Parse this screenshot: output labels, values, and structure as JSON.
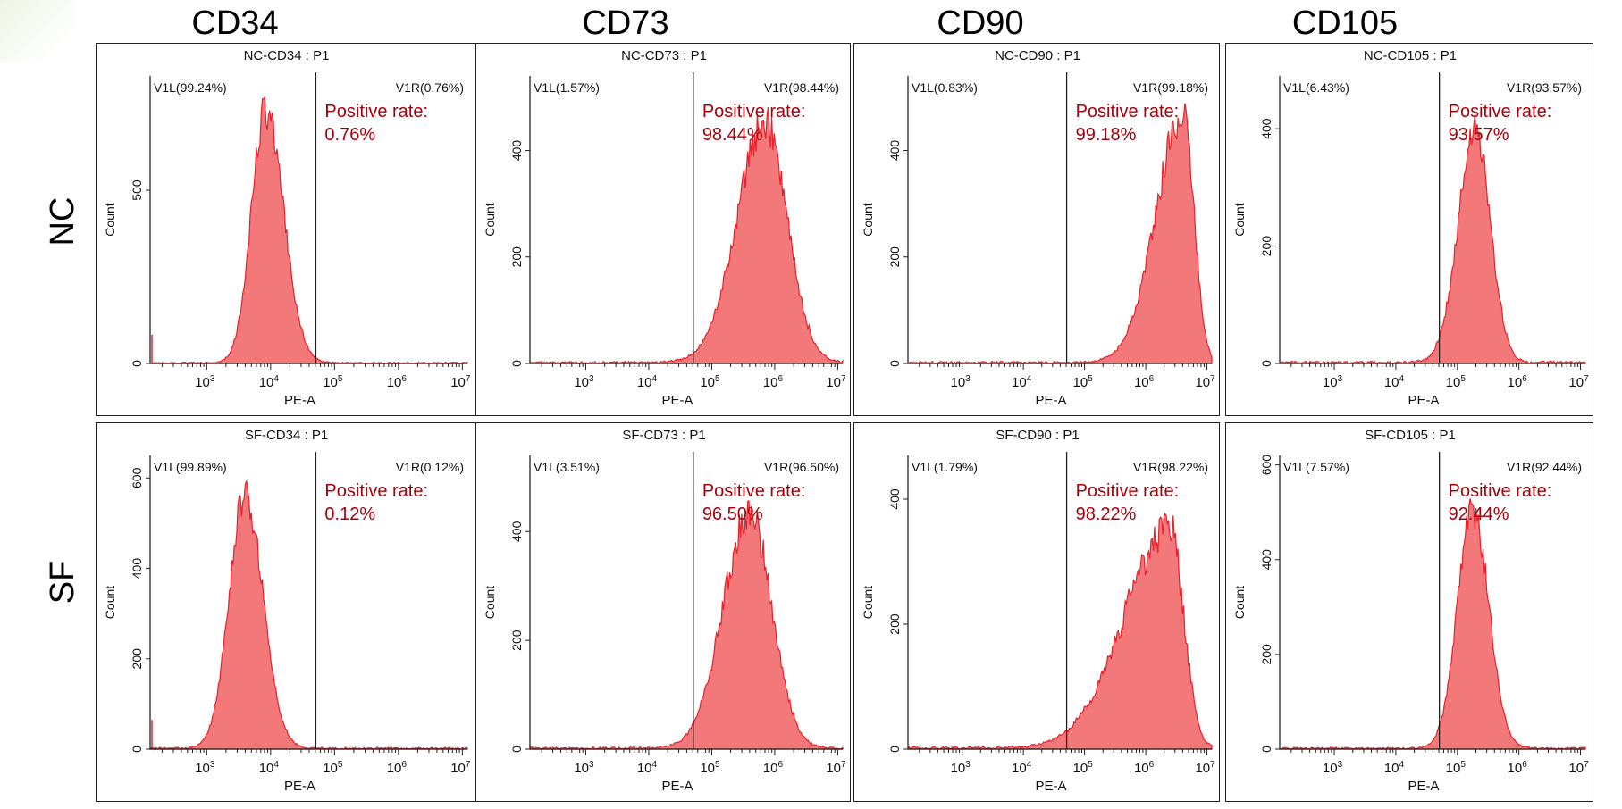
{
  "figure": {
    "column_titles": [
      "CD34",
      "CD73",
      "CD90",
      "CD105"
    ],
    "row_labels": [
      "NC",
      "SF"
    ]
  },
  "colors": {
    "fill": "#f2787a",
    "stroke": "#e8212a",
    "annotation": "#a8000a",
    "axis": "#222222"
  },
  "chart_data": [
    {
      "type": "histogram",
      "row": "NC",
      "col": "CD34",
      "title": "NC-CD34 : P1",
      "xlabel": "PE-A",
      "ylabel": "Count",
      "xscale": "log",
      "xlim": [
        130,
        12000000
      ],
      "ylim": [
        0,
        830
      ],
      "yticks": [
        0,
        500
      ],
      "xticks": [
        "10^3",
        "10^4",
        "10^5",
        "10^6",
        "10^7"
      ],
      "gate_x": 51000,
      "left_gate": "V1L(99.24%)",
      "right_gate": "V1R(0.76%)",
      "annotation_label": "Positive rate:",
      "annotation_value": "0.76%",
      "peak_log10": 3.92,
      "peak_count": 730,
      "sigma_left": 0.22,
      "sigma_right": 0.28,
      "noise": 0.08,
      "spike": true
    },
    {
      "type": "histogram",
      "row": "NC",
      "col": "CD73",
      "title": "NC-CD73 : P1",
      "xlabel": "PE-A",
      "ylabel": "Count",
      "xscale": "log",
      "xlim": [
        130,
        12000000
      ],
      "ylim": [
        0,
        540
      ],
      "yticks": [
        0,
        200,
        400
      ],
      "xticks": [
        "10^3",
        "10^4",
        "10^5",
        "10^6",
        "10^7"
      ],
      "gate_x": 51000,
      "left_gate": "V1L(1.57%)",
      "right_gate": "V1R(98.44%)",
      "annotation_label": "Positive rate:",
      "annotation_value": "98.44%",
      "peak_log10": 5.85,
      "peak_count": 450,
      "sigma_left": 0.45,
      "sigma_right": 0.35,
      "noise": 0.08,
      "spike": false
    },
    {
      "type": "histogram",
      "row": "NC",
      "col": "CD90",
      "title": "NC-CD90 : P1",
      "xlabel": "PE-A",
      "ylabel": "Count",
      "xscale": "log",
      "xlim": [
        130,
        12000000
      ],
      "ylim": [
        0,
        540
      ],
      "yticks": [
        0,
        200,
        400
      ],
      "xticks": [
        "10^3",
        "10^4",
        "10^5",
        "10^6",
        "10^7"
      ],
      "gate_x": 51000,
      "left_gate": "V1L(0.83%)",
      "right_gate": "V1R(99.18%)",
      "annotation_label": "Positive rate:",
      "annotation_value": "99.18%",
      "peak_log10": 6.62,
      "peak_count": 470,
      "sigma_left": 0.45,
      "sigma_right": 0.17,
      "noise": 0.08,
      "spike": false
    },
    {
      "type": "histogram",
      "row": "NC",
      "col": "CD105",
      "title": "NC-CD105 : P1",
      "xlabel": "PE-A",
      "ylabel": "Count",
      "xscale": "log",
      "xlim": [
        130,
        12000000
      ],
      "ylim": [
        0,
        490
      ],
      "yticks": [
        0,
        200,
        400
      ],
      "xticks": [
        "10^3",
        "10^4",
        "10^5",
        "10^6",
        "10^7"
      ],
      "gate_x": 51000,
      "left_gate": "V1L(6.43%)",
      "right_gate": "V1R(93.57%)",
      "annotation_label": "Positive rate:",
      "annotation_value": "93.57%",
      "peak_log10": 5.3,
      "peak_count": 400,
      "sigma_left": 0.28,
      "sigma_right": 0.24,
      "noise": 0.08,
      "spike": false
    },
    {
      "type": "histogram",
      "row": "SF",
      "col": "CD34",
      "title": "SF-CD34 : P1",
      "xlabel": "PE-A",
      "ylabel": "Count",
      "xscale": "log",
      "xlim": [
        130,
        12000000
      ],
      "ylim": [
        0,
        650
      ],
      "yticks": [
        0,
        200,
        400,
        600
      ],
      "xticks": [
        "10^3",
        "10^4",
        "10^5",
        "10^6",
        "10^7"
      ],
      "gate_x": 51000,
      "left_gate": "V1L(99.89%)",
      "right_gate": "V1R(0.12%)",
      "annotation_label": "Positive rate:",
      "annotation_value": "0.12%",
      "peak_log10": 3.6,
      "peak_count": 560,
      "sigma_left": 0.25,
      "sigma_right": 0.28,
      "noise": 0.07,
      "spike": true
    },
    {
      "type": "histogram",
      "row": "SF",
      "col": "CD73",
      "title": "SF-CD73 : P1",
      "xlabel": "PE-A",
      "ylabel": "Count",
      "xscale": "log",
      "xlim": [
        130,
        12000000
      ],
      "ylim": [
        0,
        540
      ],
      "yticks": [
        0,
        200,
        400
      ],
      "xticks": [
        "10^3",
        "10^4",
        "10^5",
        "10^6",
        "10^7"
      ],
      "gate_x": 51000,
      "left_gate": "V1L(3.51%)",
      "right_gate": "V1R(96.50%)",
      "annotation_label": "Positive rate:",
      "annotation_value": "96.50%",
      "peak_log10": 5.6,
      "peak_count": 430,
      "sigma_left": 0.42,
      "sigma_right": 0.35,
      "noise": 0.08,
      "spike": false
    },
    {
      "type": "histogram",
      "row": "SF",
      "col": "CD90",
      "title": "SF-CD90 : P1",
      "xlabel": "PE-A",
      "ylabel": "Count",
      "xscale": "log",
      "xlim": [
        130,
        12000000
      ],
      "ylim": [
        0,
        470
      ],
      "yticks": [
        0,
        200,
        400
      ],
      "xticks": [
        "10^3",
        "10^4",
        "10^5",
        "10^6",
        "10^7"
      ],
      "gate_x": 51000,
      "left_gate": "V1L(1.79%)",
      "right_gate": "V1R(98.22%)",
      "annotation_label": "Positive rate:",
      "annotation_value": "98.22%",
      "peak_log10": 6.4,
      "peak_count": 350,
      "sigma_left": 0.75,
      "sigma_right": 0.22,
      "noise": 0.09,
      "spike": false
    },
    {
      "type": "histogram",
      "row": "SF",
      "col": "CD105",
      "title": "SF-CD105 : P1",
      "xlabel": "PE-A",
      "ylabel": "Count",
      "xscale": "log",
      "xlim": [
        130,
        12000000
      ],
      "ylim": [
        0,
        620
      ],
      "yticks": [
        0,
        200,
        400,
        600
      ],
      "xticks": [
        "10^3",
        "10^4",
        "10^5",
        "10^6",
        "10^7"
      ],
      "gate_x": 51000,
      "left_gate": "V1L(7.57%)",
      "right_gate": "V1R(92.44%)",
      "annotation_label": "Positive rate:",
      "annotation_value": "92.44%",
      "peak_log10": 5.25,
      "peak_count": 500,
      "sigma_left": 0.25,
      "sigma_right": 0.26,
      "noise": 0.07,
      "spike": false
    }
  ]
}
